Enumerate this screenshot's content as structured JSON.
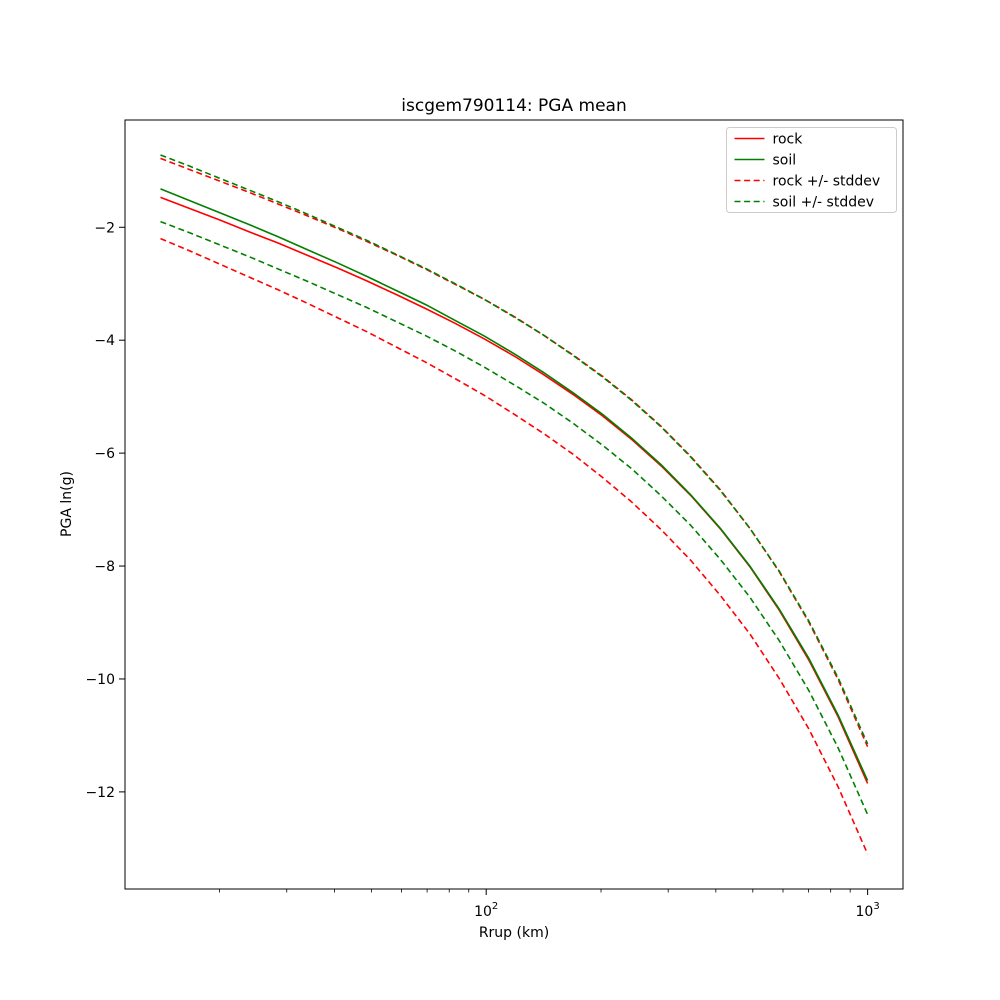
{
  "figure": {
    "title": "iscgem790114: PGA mean",
    "xlabel": "Rrup (km)",
    "ylabel": "PGA ln(g)"
  },
  "chart_data": {
    "type": "line",
    "title": "iscgem790114: PGA mean",
    "xlabel": "Rrup (km)",
    "ylabel": "PGA ln(g)",
    "x_scale": "log",
    "y_scale": "linear",
    "xlim": [
      11.3,
      1238
    ],
    "ylim": [
      -13.72,
      -0.1
    ],
    "grid": false,
    "x_ticks": [
      {
        "value": 100,
        "base": "10",
        "exp": "2"
      },
      {
        "value": 1000,
        "base": "10",
        "exp": "3"
      }
    ],
    "x_minor_ticks": [
      20,
      30,
      40,
      50,
      60,
      70,
      80,
      90,
      200,
      300,
      400,
      500,
      600,
      700,
      800,
      900
    ],
    "y_ticks": [
      {
        "value": -2,
        "label": "−2"
      },
      {
        "value": -4,
        "label": "−4"
      },
      {
        "value": -6,
        "label": "−6"
      },
      {
        "value": -8,
        "label": "−8"
      },
      {
        "value": -10,
        "label": "−10"
      },
      {
        "value": -12,
        "label": "−12"
      }
    ],
    "x": [
      14.0,
      16.73,
      19.99,
      23.88,
      28.52,
      34.07,
      40.7,
      48.63,
      58.1,
      69.4,
      82.91,
      99.04,
      118.33,
      141.34,
      168.88,
      201.74,
      240.99,
      287.9,
      343.9,
      410.9,
      490.9,
      586.4,
      700.5,
      836.9,
      1000
    ],
    "series": [
      {
        "name": "rock",
        "color": "#ff0000",
        "style": "solid",
        "values": [
          -1.47,
          -1.67,
          -1.87,
          -2.08,
          -2.28,
          -2.5,
          -2.72,
          -2.95,
          -3.19,
          -3.44,
          -3.7,
          -3.98,
          -4.28,
          -4.61,
          -4.96,
          -5.34,
          -5.76,
          -6.23,
          -6.75,
          -7.34,
          -8.01,
          -8.78,
          -9.66,
          -10.67,
          -11.85
        ]
      },
      {
        "name": "soil",
        "color": "#008000",
        "style": "solid",
        "values": [
          -1.32,
          -1.53,
          -1.74,
          -1.95,
          -2.17,
          -2.4,
          -2.63,
          -2.87,
          -3.12,
          -3.37,
          -3.65,
          -3.93,
          -4.24,
          -4.57,
          -4.93,
          -5.31,
          -5.74,
          -6.21,
          -6.74,
          -7.33,
          -8.0,
          -8.76,
          -9.63,
          -10.64,
          -11.8
        ]
      },
      {
        "name": "rock +stddev",
        "color": "#ff0000",
        "style": "dashed",
        "values": [
          -0.78,
          -0.98,
          -1.18,
          -1.38,
          -1.59,
          -1.8,
          -2.02,
          -2.25,
          -2.49,
          -2.74,
          -3.01,
          -3.28,
          -3.58,
          -3.91,
          -4.26,
          -4.64,
          -5.06,
          -5.53,
          -6.06,
          -6.65,
          -7.33,
          -8.1,
          -8.99,
          -10.01,
          -11.2
        ]
      },
      {
        "name": "rock -stddev",
        "color": "#ff0000",
        "style": "dashed",
        "values": [
          -2.2,
          -2.42,
          -2.65,
          -2.88,
          -3.11,
          -3.35,
          -3.6,
          -3.85,
          -4.12,
          -4.39,
          -4.68,
          -4.98,
          -5.31,
          -5.65,
          -6.02,
          -6.43,
          -6.87,
          -7.36,
          -7.9,
          -8.52,
          -9.2,
          -9.99,
          -10.88,
          -11.91,
          -13.1
        ]
      },
      {
        "name": "soil +stddev",
        "color": "#008000",
        "style": "dashed",
        "values": [
          -0.72,
          -0.92,
          -1.13,
          -1.34,
          -1.55,
          -1.77,
          -2.0,
          -2.23,
          -2.48,
          -2.73,
          -3.0,
          -3.28,
          -3.59,
          -3.91,
          -4.27,
          -4.65,
          -5.07,
          -5.54,
          -6.07,
          -6.66,
          -7.33,
          -8.09,
          -8.97,
          -9.98,
          -11.15
        ]
      },
      {
        "name": "soil -stddev",
        "color": "#008000",
        "style": "dashed",
        "values": [
          -1.9,
          -2.1,
          -2.31,
          -2.52,
          -2.74,
          -2.96,
          -3.19,
          -3.42,
          -3.67,
          -3.92,
          -4.19,
          -4.48,
          -4.79,
          -5.11,
          -5.47,
          -5.86,
          -6.28,
          -6.76,
          -7.28,
          -7.88,
          -8.55,
          -9.32,
          -10.2,
          -11.22,
          -12.4
        ]
      }
    ],
    "legend": {
      "position": "upper right",
      "entries": [
        {
          "label": "rock",
          "color": "#ff0000",
          "style": "solid"
        },
        {
          "label": "soil",
          "color": "#008000",
          "style": "solid"
        },
        {
          "label": "rock +/- stddev",
          "color": "#ff0000",
          "style": "dashed"
        },
        {
          "label": "soil +/- stddev",
          "color": "#008000",
          "style": "dashed"
        }
      ]
    }
  }
}
